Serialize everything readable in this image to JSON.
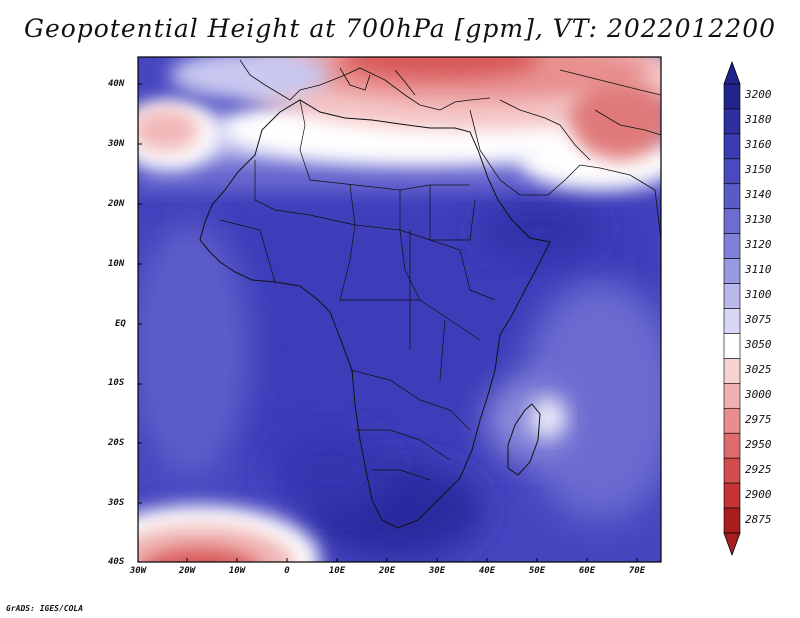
{
  "title": "Geopotential Height at 700hPa [gpm], VT: 2022012200",
  "credit": "GrADS: IGES/COLA",
  "axes": {
    "latitudes": [
      "40N",
      "30N",
      "20N",
      "10N",
      "EQ",
      "10S",
      "20S",
      "30S",
      "40S"
    ],
    "longitudes": [
      "30W",
      "20W",
      "10W",
      "0",
      "10E",
      "20E",
      "30E",
      "40E",
      "50E",
      "60E",
      "70E"
    ]
  },
  "colorbar": {
    "levels": [
      "3200",
      "3180",
      "3160",
      "3150",
      "3140",
      "3130",
      "3120",
      "3110",
      "3100",
      "3075",
      "3050",
      "3025",
      "3000",
      "2975",
      "2950",
      "2925",
      "2900",
      "2875"
    ],
    "colors": [
      "#23238e",
      "#2f2fa0",
      "#3b3bb2",
      "#4a4abe",
      "#5b5bc8",
      "#6d6dcf",
      "#8080d8",
      "#9a9ae0",
      "#b8b8ec",
      "#d8d8f6",
      "#ffffff",
      "#f8d2d2",
      "#f0b0b0",
      "#e88e8e",
      "#de6c6c",
      "#d24e4e",
      "#c43434",
      "#a81e1e"
    ]
  },
  "map_fields": {
    "background": "#3b3bb0",
    "regions": [
      "Mediterranean / Europe low",
      "South Atlantic low",
      "Sahara ridge band",
      "Southern Africa high"
    ]
  }
}
